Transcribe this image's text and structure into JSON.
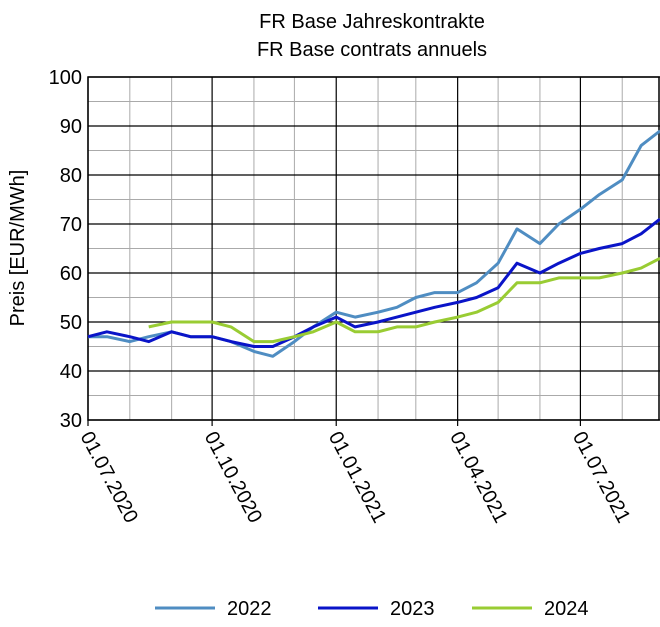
{
  "chart_data": {
    "type": "line",
    "title": "FR Base Jahreskontrakte",
    "subtitle": "FR Base contrats annuels",
    "y_label": "Preis [EUR/MWh]",
    "x": [
      "2020-07-01",
      "2020-07-15",
      "2020-08-01",
      "2020-08-15",
      "2020-09-01",
      "2020-09-15",
      "2020-10-01",
      "2020-10-15",
      "2020-11-01",
      "2020-11-15",
      "2020-12-01",
      "2020-12-15",
      "2021-01-01",
      "2021-01-15",
      "2021-02-01",
      "2021-02-15",
      "2021-03-01",
      "2021-03-15",
      "2021-04-01",
      "2021-04-15",
      "2021-05-01",
      "2021-05-15",
      "2021-06-01",
      "2021-06-15",
      "2021-07-01",
      "2021-07-15",
      "2021-08-01",
      "2021-08-15",
      "2021-08-29"
    ],
    "series": [
      {
        "name": "2022",
        "color": "#4f8dc2",
        "values": [
          47,
          47,
          46,
          47,
          48,
          47,
          47,
          46,
          44,
          43,
          46,
          49,
          52,
          51,
          52,
          53,
          55,
          56,
          56,
          58,
          62,
          69,
          66,
          70,
          73,
          76,
          79,
          86,
          89
        ]
      },
      {
        "name": "2023",
        "color": "#0a14c8",
        "values": [
          47,
          48,
          47,
          46,
          48,
          47,
          47,
          46,
          45,
          45,
          47,
          49,
          51,
          49,
          50,
          51,
          52,
          53,
          54,
          55,
          57,
          62,
          60,
          62,
          64,
          65,
          66,
          68,
          71
        ]
      },
      {
        "name": "2024",
        "color": "#99cc33",
        "values": [
          null,
          null,
          null,
          49,
          50,
          50,
          50,
          49,
          46,
          46,
          47,
          48,
          50,
          48,
          48,
          49,
          49,
          50,
          51,
          52,
          54,
          58,
          58,
          59,
          59,
          59,
          60,
          61,
          63
        ]
      }
    ],
    "xlim": [
      "2020-07-01",
      "2021-08-29"
    ],
    "xticks": [
      {
        "value": "2020-07-01",
        "label": "01.07.2020"
      },
      {
        "value": "2020-10-01",
        "label": "01.10.2020"
      },
      {
        "value": "2021-01-01",
        "label": "01.01.2021"
      },
      {
        "value": "2021-04-01",
        "label": "01.04.2021"
      },
      {
        "value": "2021-07-01",
        "label": "01.07.2021"
      }
    ],
    "xminorticks": [
      "2020-08-01",
      "2020-09-01",
      "2020-11-01",
      "2020-12-01",
      "2021-02-01",
      "2021-03-01",
      "2021-05-01",
      "2021-06-01",
      "2021-08-01"
    ],
    "ylim": [
      30,
      100
    ],
    "yticks": [
      30,
      40,
      50,
      60,
      70,
      80,
      90,
      100
    ],
    "yminorticks": [
      35,
      45,
      55,
      65,
      75,
      85,
      95
    ],
    "grid": true,
    "legend": "bottom"
  }
}
